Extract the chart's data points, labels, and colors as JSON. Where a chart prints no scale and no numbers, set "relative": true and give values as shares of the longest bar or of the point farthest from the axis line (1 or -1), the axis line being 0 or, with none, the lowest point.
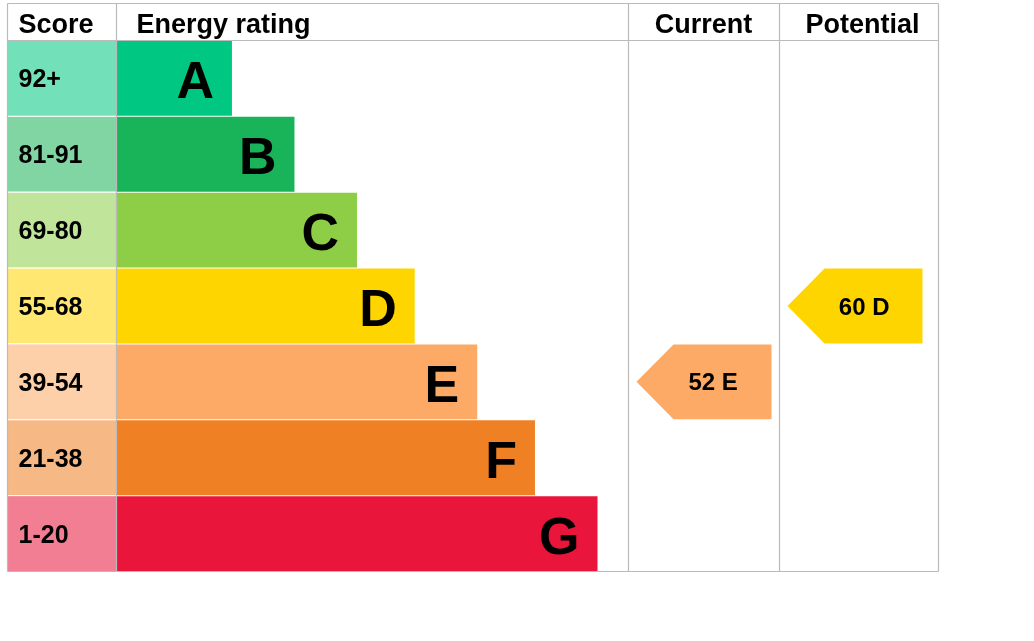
{
  "chart_data": {
    "type": "bar",
    "orientation": "horizontal",
    "relative": true,
    "categories": [
      "A",
      "B",
      "C",
      "D",
      "E",
      "F",
      "G"
    ],
    "values": [
      0.24,
      0.37,
      0.5,
      0.62,
      0.75,
      0.87,
      1
    ],
    "colors": [
      "#00c781",
      "#19b459",
      "#8dce46",
      "#ffd500",
      "#fcaa65",
      "#ef8023",
      "#e9153b"
    ],
    "annotations": [
      "Score",
      "Energy rating",
      "Current",
      "Potential",
      "92+",
      "81-91",
      "69-80",
      "55-68",
      "39-54",
      "21-38",
      "1-20",
      "52  E",
      "60  D"
    ]
  }
}
